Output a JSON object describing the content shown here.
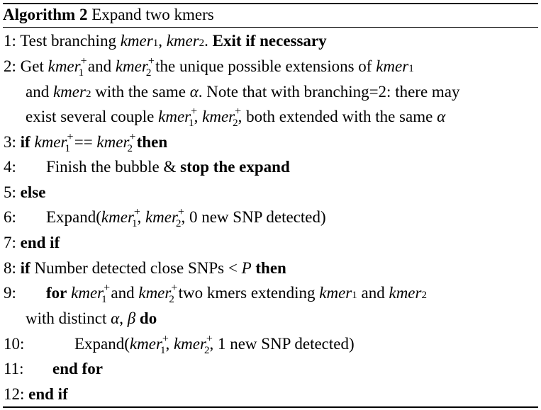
{
  "algorithm": {
    "label": "Algorithm 2",
    "title": "Expand two kmers"
  },
  "lines": {
    "l1": {
      "num": "1:",
      "a": "Test branching ",
      "k1": "kmer",
      "s1": "1",
      "c": ", ",
      "k2": "kmer",
      "s2": "2",
      "d": ". ",
      "bold": "Exit if necessary"
    },
    "l2": {
      "num": "2:",
      "a": "Get ",
      "k1": "kmer",
      "p1": "+",
      "s1": "1",
      "b": " and ",
      "k2": "kmer",
      "p2": "+",
      "s2": "2",
      "c": " the unique possible extensions of ",
      "k3": "kmer",
      "s3": "1"
    },
    "l2b": {
      "a": "and ",
      "k": "kmer",
      "s": "2",
      "b": " with the same ",
      "alpha": "α",
      "c": ". Note that with branching=2: there may"
    },
    "l2c": {
      "a": "exist several couple ",
      "k1": "kmer",
      "p1": "+",
      "s1": "1",
      "b": ", ",
      "k2": "kmer",
      "p2": "+",
      "s2": "2",
      "c": ", both extended with the same ",
      "alpha": "α"
    },
    "l3": {
      "num": "3:",
      "if": "if",
      "k1": "kmer",
      "p1": "+",
      "s1": "1",
      "eq": " == ",
      "k2": "kmer",
      "p2": "+",
      "s2": "2",
      "then": "then"
    },
    "l4": {
      "num": "4:",
      "a": "Finish the bubble & ",
      "bold": "stop the expand"
    },
    "l5": {
      "num": "5:",
      "else": "else"
    },
    "l6": {
      "num": "6:",
      "a": "Expand(",
      "k1": "kmer",
      "p1": "+",
      "s1": "1",
      "b": ", ",
      "k2": "kmer",
      "p2": "+",
      "s2": "2",
      "c": ", 0 new SNP detected)"
    },
    "l7": {
      "num": "7:",
      "endif": "end if"
    },
    "l8": {
      "num": "8:",
      "if": "if",
      "a": " Number detected close SNPs ",
      "lt": "<",
      "P": "P",
      "then": "then"
    },
    "l9": {
      "num": "9:",
      "for": "for",
      "k1": "kmer",
      "p1": "+",
      "s1": "1",
      "b": " and ",
      "k2": "kmer",
      "p2": "+",
      "s2": "2",
      "c": " two kmers extending ",
      "k3": "kmer",
      "s3": "1",
      "d": " and ",
      "k4": "kmer",
      "s4": "2"
    },
    "l9b": {
      "a": "with distinct ",
      "alpha": "α",
      "comma": ", ",
      "beta": "β",
      "do": "do"
    },
    "l10": {
      "num": "10:",
      "a": "Expand(",
      "k1": "kmer",
      "p1": "+",
      "s1": "1",
      "b": ", ",
      "k2": "kmer",
      "p2": "+",
      "s2": "2",
      "c": ", 1 new SNP detected)"
    },
    "l11": {
      "num": "11:",
      "endfor": "end for"
    },
    "l12": {
      "num": "12:",
      "endif": "end if"
    }
  }
}
